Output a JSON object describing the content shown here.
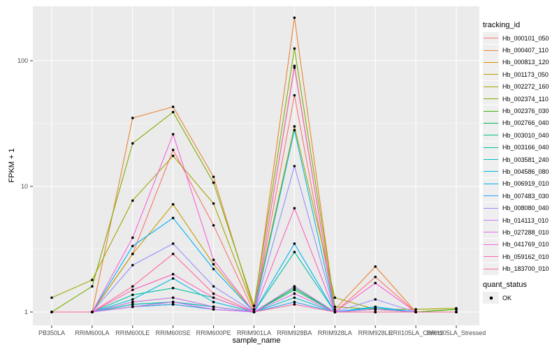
{
  "chart_data": {
    "type": "line",
    "title": "",
    "xlabel": "sample_name",
    "ylabel": "FPKM + 1",
    "y_scale": "log10",
    "yticks": [
      1,
      10,
      100
    ],
    "ytick_labels": [
      "1",
      "10",
      "100"
    ],
    "ylim": [
      0.9,
      260
    ],
    "grid": true,
    "legend_position": "right",
    "legend_color_title": "tracking_id",
    "legend_shape_title": "quant_status",
    "quant_status_label": "OK",
    "categories": [
      "PB350LA",
      "RRIM600LA",
      "RRIM600LE",
      "RRIM600SE",
      "RRIM600PE",
      "RRIM901LA",
      "RRIM928BA",
      "RRIM928LA",
      "RRIM928LE",
      "RRII105LA_Control",
      "RRII105LA_Stressed"
    ],
    "series": [
      {
        "name": "Hb_000101_050",
        "color": "#F8766D",
        "values": [
          1.0,
          1.0,
          2.9,
          19.5,
          4.9,
          1.0,
          53,
          1.0,
          1.9,
          1.0,
          1.0
        ]
      },
      {
        "name": "Hb_000407_110",
        "color": "#EA8331",
        "values": [
          1.0,
          1.0,
          35,
          43,
          11.9,
          1.05,
          220,
          1.05,
          2.3,
          1.0,
          1.0
        ]
      },
      {
        "name": "Hb_000813_120",
        "color": "#D89000",
        "values": [
          1.0,
          1.0,
          1.2,
          1.3,
          1.1,
          1.0,
          1.5,
          1.0,
          1.05,
          1.0,
          1.0
        ]
      },
      {
        "name": "Hb_001173_050",
        "color": "#C09B00",
        "values": [
          1.0,
          1.0,
          2.9,
          7.2,
          2.4,
          1.0,
          91,
          1.0,
          1.05,
          1.0,
          1.0
        ]
      },
      {
        "name": "Hb_002272_160",
        "color": "#A3A500",
        "values": [
          1.3,
          1.8,
          7.7,
          17.5,
          7.3,
          1.05,
          30,
          1.3,
          1.05,
          1.05,
          1.07
        ]
      },
      {
        "name": "Hb_002374_110",
        "color": "#7CAE00",
        "values": [
          1.0,
          1.6,
          22,
          39,
          10.7,
          1.12,
          125,
          1.1,
          1.05,
          1.0,
          1.05
        ]
      },
      {
        "name": "Hb_002376_030",
        "color": "#39B600",
        "values": [
          1.0,
          1.0,
          1.15,
          1.2,
          1.1,
          1.0,
          1.6,
          1.0,
          1.0,
          1.0,
          1.05
        ]
      },
      {
        "name": "Hb_002766_040",
        "color": "#00BB4E",
        "values": [
          1.0,
          1.0,
          1.1,
          1.15,
          1.05,
          1.0,
          1.55,
          1.0,
          1.0,
          1.0,
          1.0
        ]
      },
      {
        "name": "Hb_003010_040",
        "color": "#00BF7D",
        "values": [
          1.0,
          1.0,
          1.1,
          1.2,
          1.1,
          1.0,
          1.5,
          1.0,
          1.0,
          1.0,
          1.0
        ]
      },
      {
        "name": "Hb_003166_040",
        "color": "#00C1A3",
        "values": [
          1.0,
          1.0,
          1.37,
          1.55,
          1.3,
          1.0,
          3.0,
          1.0,
          1.0,
          1.0,
          1.0
        ]
      },
      {
        "name": "Hb_003581_240",
        "color": "#00BFC4",
        "values": [
          1.0,
          1.0,
          1.15,
          1.2,
          1.1,
          1.0,
          1.3,
          1.0,
          1.0,
          1.0,
          1.0
        ]
      },
      {
        "name": "Hb_004586_080",
        "color": "#00BAE0",
        "values": [
          1.0,
          1.0,
          1.26,
          1.85,
          1.2,
          1.0,
          28,
          1.0,
          1.08,
          1.0,
          1.0
        ]
      },
      {
        "name": "Hb_006919_010",
        "color": "#00B0F6",
        "values": [
          1.0,
          1.0,
          3.35,
          5.6,
          2.2,
          1.0,
          3.5,
          1.0,
          1.1,
          1.0,
          1.0
        ]
      },
      {
        "name": "Hb_007483_030",
        "color": "#35A2FF",
        "values": [
          1.0,
          1.0,
          1.1,
          1.15,
          1.05,
          1.0,
          1.2,
          1.0,
          1.0,
          1.0,
          1.0
        ]
      },
      {
        "name": "Hb_008080_040",
        "color": "#9590FF",
        "values": [
          1.0,
          1.0,
          2.36,
          3.5,
          1.6,
          1.0,
          14.5,
          1.0,
          1.26,
          1.0,
          1.0
        ]
      },
      {
        "name": "Hb_014113_010",
        "color": "#C77CFF",
        "values": [
          1.0,
          1.0,
          1.2,
          1.3,
          1.1,
          1.0,
          1.6,
          1.0,
          1.05,
          1.0,
          1.0
        ]
      },
      {
        "name": "Hb_027288_010",
        "color": "#E76BF3",
        "values": [
          1.0,
          1.0,
          1.1,
          1.2,
          1.05,
          1.0,
          1.4,
          1.0,
          1.0,
          1.0,
          1.0
        ]
      },
      {
        "name": "Hb_041769_010",
        "color": "#FA62DB",
        "values": [
          1.0,
          1.0,
          3.9,
          26,
          2.6,
          1.0,
          88,
          1.0,
          1.7,
          1.0,
          1.0
        ]
      },
      {
        "name": "Hb_059162_010",
        "color": "#FF62BC",
        "values": [
          1.0,
          1.0,
          1.5,
          2.0,
          1.3,
          1.0,
          6.7,
          1.0,
          1.0,
          1.0,
          1.0
        ]
      },
      {
        "name": "Hb_183700_010",
        "color": "#FF6A98",
        "values": [
          1.0,
          1.0,
          1.6,
          2.9,
          1.4,
          1.0,
          1.15,
          1.0,
          1.0,
          1.0,
          1.0
        ]
      }
    ]
  },
  "style": {
    "panel_bg": "#EBEBEB",
    "grid_color": "#FFFFFF",
    "axis_text_color": "#4D4D4D",
    "tick_mark_color": "#333333",
    "point_color": "#000000",
    "legend_key_bg": "#EFEFEF"
  }
}
